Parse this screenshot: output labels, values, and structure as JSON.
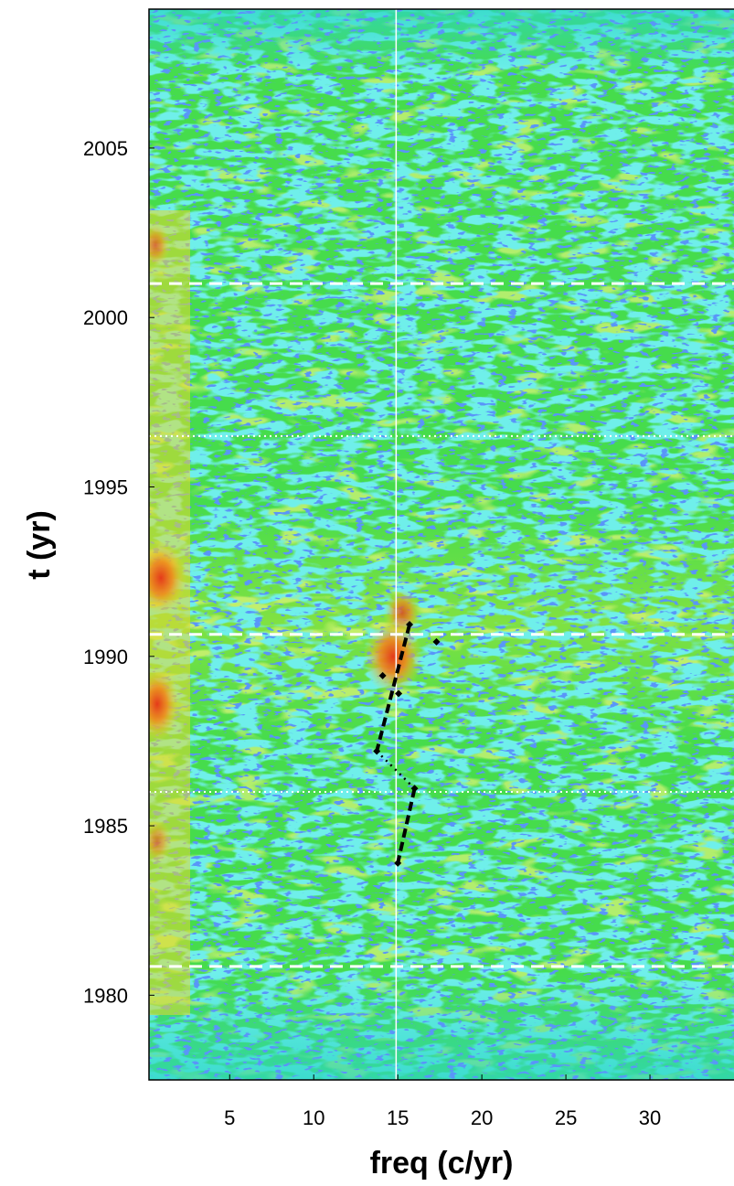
{
  "chart_data": {
    "type": "heatmap",
    "xlabel": "freq (c/yr)",
    "ylabel": "t (yr)",
    "xlim": [
      0.2,
      35
    ],
    "ylim": [
      1977.5,
      2009.1
    ],
    "xticks": [
      5,
      10,
      15,
      20,
      25,
      30
    ],
    "yticks": [
      1980,
      1985,
      1990,
      1995,
      2000,
      2005
    ],
    "vlines": [
      {
        "x": 14.9,
        "color": "#ffffff"
      }
    ],
    "hlines": [
      {
        "y": 2001.0,
        "style": "dashed",
        "color": "#ffffff"
      },
      {
        "y": 1996.5,
        "style": "dotted",
        "color": "#ffffff"
      },
      {
        "y": 1990.65,
        "style": "dashed",
        "color": "#ffffff"
      },
      {
        "y": 1986.0,
        "style": "dotted",
        "color": "#ffffff"
      },
      {
        "y": 1980.85,
        "style": "dashed",
        "color": "#ffffff"
      }
    ],
    "track_segments": [
      {
        "x": [
          15.7,
          13.75
        ],
        "y": [
          1990.94,
          1987.2
        ],
        "style": "dashed",
        "color": "#000000"
      },
      {
        "x": [
          13.75,
          16.0
        ],
        "y": [
          1987.2,
          1986.1
        ],
        "style": "dotted",
        "color": "#000000"
      },
      {
        "x": [
          16.0,
          15.0
        ],
        "y": [
          1986.1,
          1983.9
        ],
        "style": "dashed",
        "color": "#000000"
      }
    ],
    "track_points": {
      "x": [
        15.7,
        17.3,
        14.1,
        15.05,
        13.75,
        16.0,
        15.0
      ],
      "y": [
        1990.94,
        1990.43,
        1989.43,
        1988.9,
        1987.2,
        1986.1,
        1983.9
      ],
      "color": "#000000"
    }
  }
}
